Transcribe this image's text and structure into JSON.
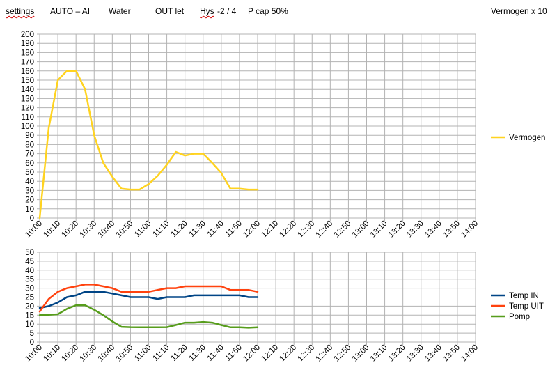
{
  "header": {
    "settings": "settings",
    "mode": "AUTO – AI",
    "medium": "Water",
    "outlet": "OUT let",
    "hys_label": "Hys",
    "hys_value": "-2 / 4",
    "pcap": "P cap 50%",
    "scale_note": "Vermogen x 10"
  },
  "colors": {
    "vermogen": "#FFD320",
    "temp_in": "#004586",
    "temp_uit": "#FF420E",
    "pomp": "#579D1C",
    "grid": "#b3b3b3"
  },
  "chart_data": [
    {
      "type": "line",
      "title": "",
      "xlabel": "",
      "ylabel": "",
      "x": [
        "10:00",
        "10:10",
        "10:20",
        "10:30",
        "10:40",
        "10:50",
        "11:00",
        "11:10",
        "11:20",
        "11:30",
        "11:40",
        "11:50",
        "12:00",
        "12:10",
        "12:20",
        "12:30",
        "12:40",
        "12:50",
        "13:00",
        "13:10",
        "13:20",
        "13:30",
        "13:40",
        "13:50",
        "14:00"
      ],
      "ylim": [
        0,
        200
      ],
      "ytick_step": 10,
      "grid": true,
      "legend": "right",
      "series": [
        {
          "name": "Vermogen",
          "color_key": "vermogen",
          "points": [
            [
              0,
              0
            ],
            [
              0.5,
              98
            ],
            [
              1,
              150
            ],
            [
              1.5,
              160
            ],
            [
              2,
              160
            ],
            [
              2.5,
              140
            ],
            [
              3,
              90
            ],
            [
              3.5,
              60
            ],
            [
              4,
              45
            ],
            [
              4.5,
              32
            ],
            [
              5,
              31
            ],
            [
              5.5,
              31
            ],
            [
              6,
              37
            ],
            [
              6.5,
              46
            ],
            [
              7,
              58
            ],
            [
              7.5,
              72
            ],
            [
              8,
              68
            ],
            [
              8.5,
              70
            ],
            [
              9,
              70
            ],
            [
              9.5,
              60
            ],
            [
              10,
              49
            ],
            [
              10.5,
              32
            ],
            [
              11,
              32
            ],
            [
              11.5,
              31
            ],
            [
              12,
              31
            ]
          ]
        }
      ]
    },
    {
      "type": "line",
      "title": "",
      "xlabel": "",
      "ylabel": "",
      "x": [
        "10:00",
        "10:10",
        "10:20",
        "10:30",
        "10:40",
        "10:50",
        "11:00",
        "11:10",
        "11:20",
        "11:30",
        "11:40",
        "11:50",
        "12:00",
        "12:10",
        "12:20",
        "12:30",
        "12:40",
        "12:50",
        "13:00",
        "13:10",
        "13:20",
        "13:30",
        "13:40",
        "13:50",
        "14:00"
      ],
      "ylim": [
        0,
        50
      ],
      "ytick_step": 5,
      "grid": true,
      "legend": "right",
      "series": [
        {
          "name": "Temp IN",
          "color_key": "temp_in",
          "points": [
            [
              0,
              19
            ],
            [
              0.5,
              20
            ],
            [
              1,
              22
            ],
            [
              1.5,
              25
            ],
            [
              2,
              26
            ],
            [
              2.5,
              28
            ],
            [
              3,
              28
            ],
            [
              3.5,
              28
            ],
            [
              4,
              27
            ],
            [
              4.5,
              26
            ],
            [
              5,
              25
            ],
            [
              5.5,
              25
            ],
            [
              6,
              25
            ],
            [
              6.5,
              24
            ],
            [
              7,
              25
            ],
            [
              7.5,
              25
            ],
            [
              8,
              25
            ],
            [
              8.5,
              26
            ],
            [
              9,
              26
            ],
            [
              9.5,
              26
            ],
            [
              10,
              26
            ],
            [
              10.5,
              26
            ],
            [
              11,
              26
            ],
            [
              11.5,
              25
            ],
            [
              12,
              25
            ]
          ]
        },
        {
          "name": "Temp UIT",
          "color_key": "temp_uit",
          "points": [
            [
              0,
              17
            ],
            [
              0.5,
              24
            ],
            [
              1,
              28
            ],
            [
              1.5,
              30
            ],
            [
              2,
              31
            ],
            [
              2.5,
              32
            ],
            [
              3,
              32
            ],
            [
              3.5,
              31
            ],
            [
              4,
              30
            ],
            [
              4.5,
              28
            ],
            [
              5,
              28
            ],
            [
              5.5,
              28
            ],
            [
              6,
              28
            ],
            [
              6.5,
              29
            ],
            [
              7,
              30
            ],
            [
              7.5,
              30
            ],
            [
              8,
              31
            ],
            [
              8.5,
              31
            ],
            [
              9,
              31
            ],
            [
              9.5,
              31
            ],
            [
              10,
              31
            ],
            [
              10.5,
              29
            ],
            [
              11,
              29
            ],
            [
              11.5,
              29
            ],
            [
              12,
              28
            ]
          ]
        },
        {
          "name": "Pomp",
          "color_key": "pomp",
          "points": [
            [
              0,
              15
            ],
            [
              0.5,
              15.2
            ],
            [
              1,
              15.5
            ],
            [
              1.5,
              18.5
            ],
            [
              2,
              20.5
            ],
            [
              2.5,
              20.5
            ],
            [
              3,
              18
            ],
            [
              3.5,
              15
            ],
            [
              4,
              11.5
            ],
            [
              4.5,
              8.5
            ],
            [
              5,
              8.3
            ],
            [
              5.5,
              8.2
            ],
            [
              6,
              8.2
            ],
            [
              6.5,
              8.2
            ],
            [
              7,
              8.3
            ],
            [
              7.5,
              9.5
            ],
            [
              8,
              10.8
            ],
            [
              8.5,
              10.8
            ],
            [
              9,
              11.2
            ],
            [
              9.5,
              10.8
            ],
            [
              10,
              9.5
            ],
            [
              10.5,
              8.2
            ],
            [
              11,
              8.2
            ],
            [
              11.5,
              8
            ],
            [
              12,
              8.2
            ]
          ]
        }
      ]
    }
  ]
}
